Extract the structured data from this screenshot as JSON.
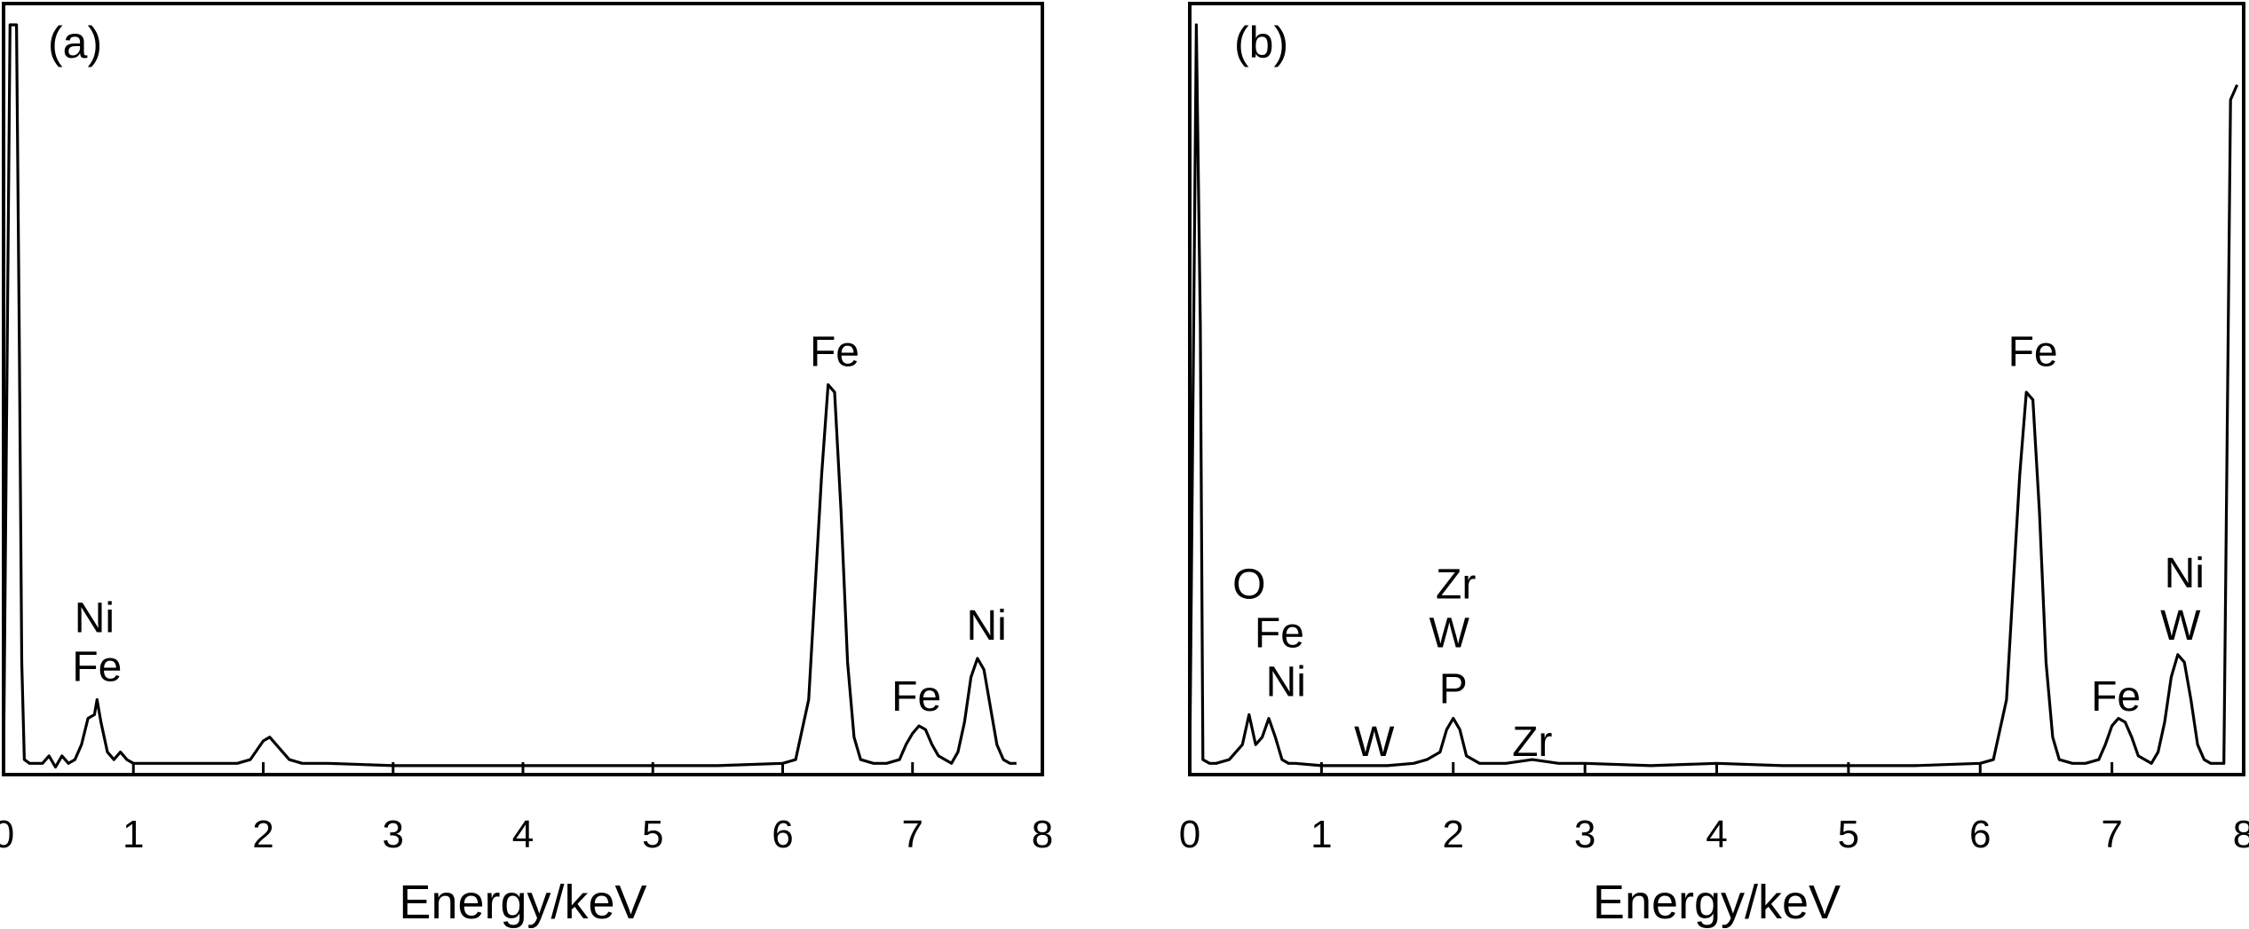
{
  "chart_data": [
    {
      "type": "line",
      "panel_label": "(a)",
      "xlabel": "Energy/keV",
      "ylabel": "",
      "xlim": [
        0,
        8
      ],
      "ylim": [
        0,
        100
      ],
      "x_ticks": [
        "0",
        "1",
        "2",
        "3",
        "4",
        "5",
        "6",
        "7",
        "8"
      ],
      "grid": false,
      "series": [
        {
          "x": [
            0.0,
            0.05,
            0.1,
            0.12,
            0.14,
            0.16,
            0.2,
            0.3,
            0.35,
            0.4,
            0.45,
            0.5,
            0.55,
            0.6,
            0.65,
            0.7,
            0.72,
            0.75,
            0.8,
            0.85,
            0.9,
            0.95,
            1.0,
            1.2,
            1.4,
            1.6,
            1.8,
            1.9,
            2.0,
            2.05,
            2.1,
            2.15,
            2.2,
            2.3,
            2.5,
            3.0,
            3.5,
            4.0,
            4.5,
            5.0,
            5.5,
            6.0,
            6.1,
            6.2,
            6.25,
            6.3,
            6.35,
            6.4,
            6.45,
            6.5,
            6.55,
            6.6,
            6.7,
            6.8,
            6.9,
            6.95,
            7.0,
            7.05,
            7.1,
            7.15,
            7.2,
            7.3,
            7.35,
            7.4,
            7.45,
            7.5,
            7.55,
            7.6,
            7.65,
            7.7,
            7.75,
            7.8
          ],
          "y": [
            1,
            100,
            100,
            60,
            15,
            2,
            1.5,
            1.5,
            2.5,
            1,
            2.5,
            1.5,
            2,
            4,
            7.5,
            8,
            10,
            7,
            3,
            2,
            3,
            2,
            1.5,
            1.5,
            1.5,
            1.5,
            1.5,
            2,
            4.5,
            5,
            4,
            3,
            2,
            1.5,
            1.5,
            1.2,
            1.2,
            1.2,
            1.2,
            1.2,
            1.2,
            1.5,
            2,
            10,
            25,
            40,
            52,
            51,
            35,
            15,
            5,
            2,
            1.5,
            1.5,
            2,
            4,
            5.5,
            6.5,
            6,
            4,
            2.5,
            1.5,
            3,
            7,
            13,
            15.5,
            14,
            9,
            4,
            2,
            1.5,
            1.5
          ]
        }
      ],
      "annotations": [
        {
          "text": "Ni",
          "x": 0.7,
          "y": 19
        },
        {
          "text": "Fe",
          "x": 0.72,
          "y": 12.5
        },
        {
          "text": "Fe",
          "x": 6.4,
          "y": 54.5
        },
        {
          "text": "Fe",
          "x": 7.03,
          "y": 8.5
        },
        {
          "text": "Ni",
          "x": 7.57,
          "y": 18
        }
      ]
    },
    {
      "type": "line",
      "panel_label": "(b)",
      "xlabel": "Energy/keV",
      "ylabel": "",
      "xlim": [
        0,
        8
      ],
      "ylim": [
        0,
        100
      ],
      "x_ticks": [
        "0",
        "1",
        "2",
        "3",
        "4",
        "5",
        "6",
        "7",
        "8"
      ],
      "grid": false,
      "series": [
        {
          "x": [
            0.0,
            0.05,
            0.08,
            0.1,
            0.15,
            0.2,
            0.3,
            0.4,
            0.45,
            0.5,
            0.55,
            0.6,
            0.65,
            0.7,
            0.75,
            0.8,
            1.0,
            1.2,
            1.5,
            1.7,
            1.8,
            1.9,
            1.95,
            2.0,
            2.05,
            2.1,
            2.2,
            2.4,
            2.6,
            2.8,
            3.0,
            3.5,
            4.0,
            4.5,
            5.0,
            5.5,
            6.0,
            6.1,
            6.2,
            6.25,
            6.3,
            6.35,
            6.4,
            6.45,
            6.5,
            6.55,
            6.6,
            6.7,
            6.8,
            6.9,
            6.95,
            7.0,
            7.05,
            7.1,
            7.15,
            7.2,
            7.3,
            7.35,
            7.4,
            7.45,
            7.5,
            7.55,
            7.6,
            7.65,
            7.7,
            7.75,
            7.8,
            7.85,
            7.9,
            7.95
          ],
          "y": [
            1,
            100,
            60,
            2,
            1.5,
            1.5,
            2,
            4,
            8,
            4,
            5,
            7.5,
            5,
            2,
            1.5,
            1.5,
            1.2,
            1.2,
            1.2,
            1.5,
            2,
            3,
            6,
            7.5,
            6,
            2.5,
            1.5,
            1.5,
            2,
            1.5,
            1.5,
            1.2,
            1.5,
            1.2,
            1.2,
            1.2,
            1.5,
            2,
            10,
            25,
            40,
            51,
            50,
            35,
            15,
            5,
            2,
            1.5,
            1.5,
            2,
            4,
            6.5,
            7.5,
            7,
            5,
            2.5,
            1.5,
            3,
            7,
            13,
            16,
            15,
            10,
            4,
            2,
            1.5,
            1.5,
            1.5,
            90,
            92
          ]
        }
      ],
      "annotations": [
        {
          "text": "O",
          "x": 0.45,
          "y": 23.5
        },
        {
          "text": "Fe",
          "x": 0.68,
          "y": 17
        },
        {
          "text": "Ni",
          "x": 0.73,
          "y": 10.5
        },
        {
          "text": "W",
          "x": 1.4,
          "y": 2.5
        },
        {
          "text": "Zr",
          "x": 2.02,
          "y": 23.5
        },
        {
          "text": "W",
          "x": 1.97,
          "y": 17
        },
        {
          "text": "P",
          "x": 2.0,
          "y": 9.5
        },
        {
          "text": "Zr",
          "x": 2.6,
          "y": 2.5
        },
        {
          "text": "Fe",
          "x": 6.4,
          "y": 54.5
        },
        {
          "text": "Fe",
          "x": 7.03,
          "y": 8.5
        },
        {
          "text": "W",
          "x": 7.52,
          "y": 18
        },
        {
          "text": "Ni",
          "x": 7.55,
          "y": 25
        }
      ]
    }
  ]
}
